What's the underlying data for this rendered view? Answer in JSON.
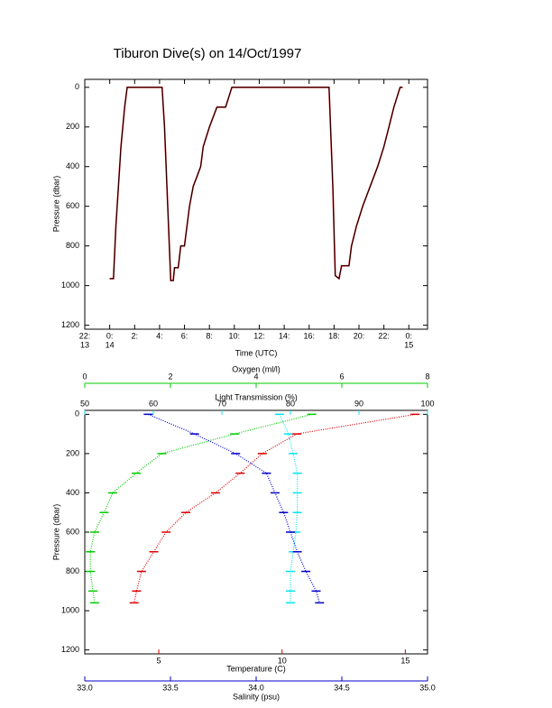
{
  "title": "Tiburon Dive(s) on 14/Oct/1997",
  "chart_data": [
    {
      "type": "line",
      "xlabel": "Time (UTC)",
      "ylabel": "Pressure (dbar)",
      "color": "#000000",
      "highlight_color": "#cc0000",
      "xlim": [
        -2,
        25.5
      ],
      "ylim": [
        -40,
        1220
      ],
      "y_reversed": true,
      "xticks": [
        {
          "value": -2,
          "label": "22:"
        },
        {
          "value": 0,
          "label": "0:"
        },
        {
          "value": 2,
          "label": "2:"
        },
        {
          "value": 4,
          "label": "4:"
        },
        {
          "value": 6,
          "label": "6:"
        },
        {
          "value": 8,
          "label": "8:"
        },
        {
          "value": 10,
          "label": "10:"
        },
        {
          "value": 12,
          "label": "12:"
        },
        {
          "value": 14,
          "label": "14:"
        },
        {
          "value": 16,
          "label": "16:"
        },
        {
          "value": 18,
          "label": "18:"
        },
        {
          "value": 20,
          "label": "20:"
        },
        {
          "value": 22,
          "label": "22:"
        },
        {
          "value": 24,
          "label": "0:"
        }
      ],
      "date_labels": [
        {
          "value": -2,
          "label": "13"
        },
        {
          "value": 0,
          "label": "14"
        },
        {
          "value": 24,
          "label": "15"
        }
      ],
      "yticks": [
        0,
        200,
        400,
        600,
        800,
        1000,
        1200
      ],
      "x": [
        0.0,
        0.3,
        0.5,
        0.9,
        1.2,
        1.4,
        4.2,
        4.4,
        4.9,
        5.1,
        5.2,
        5.5,
        5.7,
        6.0,
        6.2,
        6.4,
        6.7,
        7.0,
        7.3,
        7.5,
        8.0,
        8.6,
        9.3,
        9.8,
        17.6,
        17.9,
        18.1,
        18.4,
        18.6,
        19.2,
        19.4,
        19.8,
        20.3,
        20.9,
        21.5,
        22.0,
        22.4,
        22.8,
        23.3,
        23.5
      ],
      "values": [
        965,
        965,
        700,
        300,
        100,
        0,
        0,
        200,
        975,
        975,
        910,
        910,
        800,
        800,
        700,
        600,
        500,
        450,
        400,
        300,
        200,
        100,
        100,
        0,
        0,
        500,
        950,
        965,
        900,
        900,
        800,
        700,
        600,
        500,
        400,
        300,
        200,
        100,
        0,
        0
      ]
    },
    {
      "type": "profile",
      "ylabel": "Pressure (dbar)",
      "ylim": [
        -20,
        1220
      ],
      "y_reversed": true,
      "yticks": [
        0,
        200,
        400,
        600,
        800,
        1000,
        1200
      ],
      "pressure": [
        0,
        100,
        200,
        300,
        400,
        500,
        600,
        700,
        800,
        900,
        960
      ],
      "axes": [
        {
          "label": "Oxygen (ml/l)",
          "color": "#00cc00",
          "lim": [
            0,
            8
          ],
          "ticks": [
            0,
            2,
            4,
            6,
            8
          ]
        },
        {
          "label": "Light Transmission (%)",
          "color": "#00e5ee",
          "lim": [
            50,
            100
          ],
          "ticks": [
            50,
            60,
            70,
            80,
            90,
            100
          ]
        },
        {
          "label": "Temperature (C)",
          "color": "#dd0000",
          "lim": [
            2.0,
            15.9
          ],
          "ticks": [
            5,
            10,
            15
          ]
        },
        {
          "label": "Salinity (psu)",
          "color": "#0000cc",
          "lim": [
            33.0,
            35.0
          ],
          "ticks": [
            {
              "value": 33,
              "label": "33.0"
            },
            33.5,
            {
              "value": 34,
              "label": "34.0"
            },
            34.5,
            {
              "value": 35,
              "label": "35.0"
            }
          ]
        }
      ],
      "series": [
        {
          "axis": 0,
          "color": "#00cc00",
          "values": [
            5.3,
            3.5,
            1.8,
            1.2,
            0.65,
            0.45,
            0.23,
            0.13,
            0.13,
            0.19,
            0.23
          ]
        },
        {
          "axis": 1,
          "color": "#00e5ee",
          "values": [
            78.4,
            79.7,
            80.4,
            81,
            81,
            81,
            80.8,
            80.4,
            80,
            80,
            80
          ]
        },
        {
          "axis": 2,
          "color": "#dd0000",
          "values": [
            15.4,
            10.6,
            9.2,
            8.3,
            7.3,
            6.1,
            5.3,
            4.8,
            4.3,
            4.1,
            4.0
          ]
        },
        {
          "axis": 3,
          "color": "#0000cc",
          "values": [
            33.37,
            33.64,
            33.88,
            34.06,
            34.11,
            34.16,
            34.2,
            34.24,
            34.29,
            34.35,
            34.37
          ]
        }
      ]
    }
  ]
}
